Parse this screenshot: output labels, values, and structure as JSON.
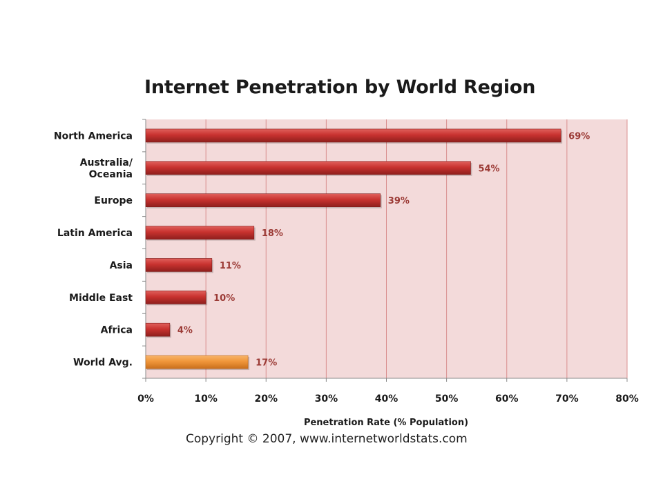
{
  "chart_data": {
    "type": "bar",
    "orientation": "horizontal",
    "title": "Internet Penetration by World Region",
    "xlabel": "Penetration Rate (% Population)",
    "ylabel": "",
    "xlim": [
      0,
      80
    ],
    "x_ticks": [
      "0%",
      "10%",
      "20%",
      "30%",
      "40%",
      "50%",
      "60%",
      "70%",
      "80%"
    ],
    "grid": "vertical",
    "categories": [
      [
        "North America"
      ],
      [
        "Australia/",
        "Oceania"
      ],
      [
        "Europe"
      ],
      [
        "Latin America"
      ],
      [
        "Asia"
      ],
      [
        "Middle East"
      ],
      [
        "Africa"
      ],
      [
        "World Avg."
      ]
    ],
    "values": [
      69,
      54,
      39,
      18,
      11,
      10,
      4,
      17
    ],
    "data_labels": [
      "69%",
      "54%",
      "39%",
      "18%",
      "11%",
      "10%",
      "4%",
      "17%"
    ],
    "colors": {
      "region_bar": "#c0312f",
      "average_bar": "#f0963a",
      "plot_background": "#f3dada",
      "gridline": "#d98e8e",
      "data_label": "#9b3a35"
    }
  },
  "copyright": "Copyright © 2007, www.internetworldstats.com"
}
